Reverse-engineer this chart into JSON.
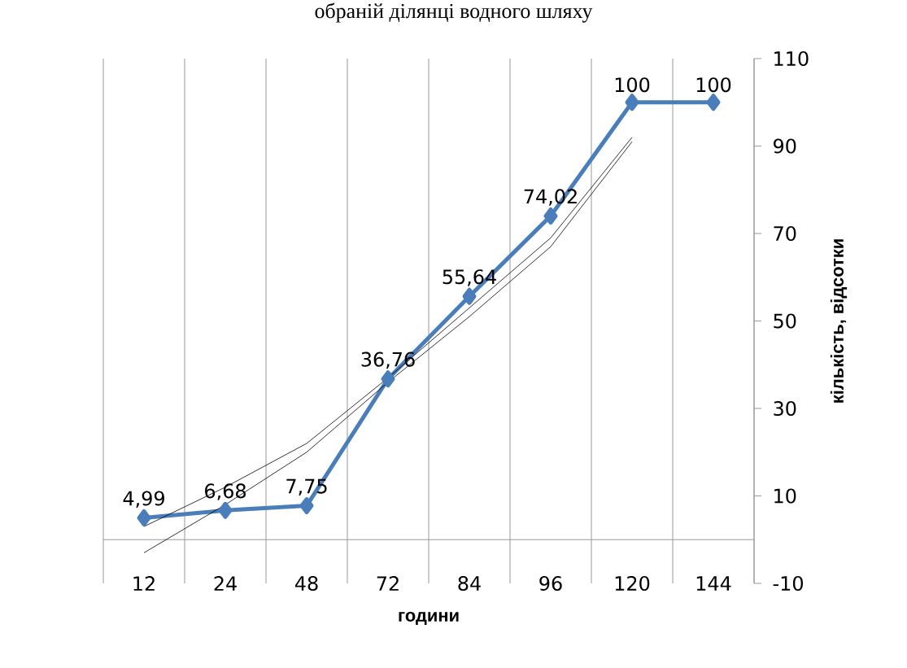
{
  "chart_data": {
    "type": "line",
    "title": "обраній ділянці водного шляху",
    "xlabel": "години",
    "ylabel": "кількість, відсотки",
    "categories": [
      "12",
      "24",
      "48",
      "72",
      "84",
      "96",
      "120",
      "144"
    ],
    "series": [
      {
        "color": "#4a7ebb",
        "marker": "diamond",
        "values": [
          4.99,
          6.68,
          7.75,
          36.76,
          55.64,
          74.02,
          100,
          100
        ],
        "value_labels": [
          "4,99",
          "6,68",
          "7,75",
          "36,76",
          "55,64",
          "74,02",
          "100",
          "100"
        ]
      },
      {
        "color": "#000000",
        "marker": "none",
        "values": [
          -3,
          8,
          20,
          36,
          51,
          67,
          91,
          null
        ]
      },
      {
        "color": "#000000",
        "marker": "none",
        "values": [
          3,
          12,
          22,
          37,
          53,
          69,
          92,
          null
        ]
      }
    ],
    "ylim": [
      -10,
      110
    ],
    "yticks": [
      -10,
      10,
      30,
      50,
      70,
      90,
      110
    ],
    "grid": "x",
    "legend": false
  }
}
